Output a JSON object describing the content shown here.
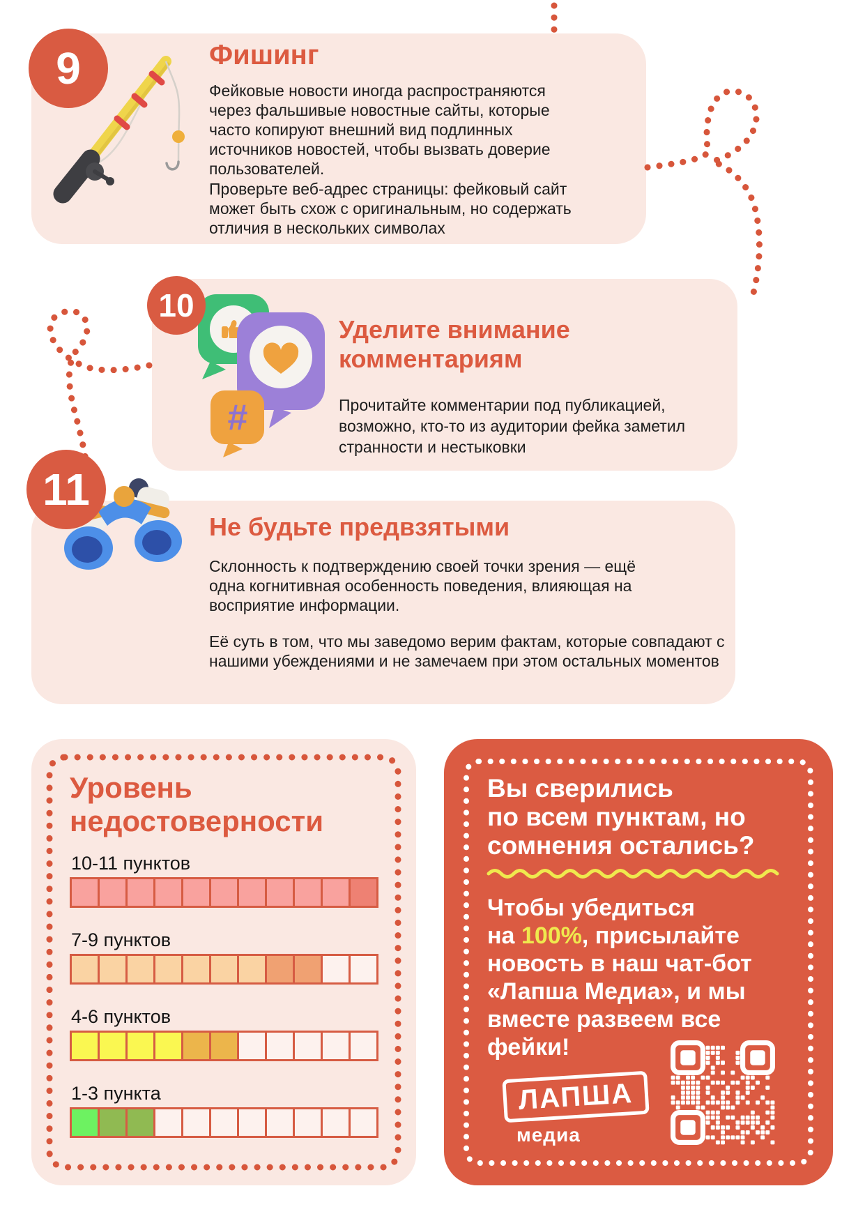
{
  "colors": {
    "accent": "#DC5A40",
    "badge": "#D95B42",
    "card_bg": "#FAE8E2",
    "cta_bg": "#DB5B42",
    "highlight_yellow": "#EFE94E",
    "text_dark": "#1D1D1D",
    "dotted_line": "#D7563B",
    "bar_border": "#D65C43",
    "bar_empty": "#FDF2EE"
  },
  "steps": {
    "phishing": {
      "number": "9",
      "title": "Фишинг",
      "icon": "fishing-rod",
      "p1": "Фейковые новости иногда распространяются через фальшивые новостные сайты, которые часто копируют внешний вид подлинных источников новостей, чтобы вызвать доверие пользователей.",
      "p2": "Проверьте веб-адрес страницы: фейковый сайт может быть схож с оригинальным, но содержать отличия в нескольких символах"
    },
    "comments": {
      "number": "10",
      "title": "Уделите внимание комментариям",
      "icon": "social-bubbles",
      "p1": "Прочитайте комментарии под публикацией, возможно, кто-то из аудитории фейка заметил странности и нестыковки"
    },
    "bias": {
      "number": "11",
      "title": "Не будьте предвзятыми",
      "icon": "binoculars",
      "p1": "Склонность к подтверждению своей точки зрения — ещё одна когнитивная особенность поведения, влияющая на восприятие информации.",
      "p2": "Её суть в том, что мы заведомо верим фактам, которые совпадают с нашими убеждениями и не замечаем при этом остальных моментов"
    }
  },
  "level_panel": {
    "title": "Уровень недостоверности",
    "total_cells": 11,
    "rows": [
      {
        "label": "10-11 пунктов",
        "filled": 11,
        "cell_colors": [
          "#F9A29E",
          "#F9A29E",
          "#F9A29E",
          "#F9A29E",
          "#F9A29E",
          "#F9A29E",
          "#F9A29E",
          "#F9A29E",
          "#F9A29E",
          "#F9A29E",
          "#EE8173"
        ]
      },
      {
        "label": "7-9 пунктов",
        "filled": 9,
        "cell_colors": [
          "#FAD3A3",
          "#FAD3A3",
          "#FAD3A3",
          "#FAD3A3",
          "#FAD3A3",
          "#FAD3A3",
          "#FAD3A3",
          "#F0A172",
          "#F0A172"
        ]
      },
      {
        "label": "4-6 пунктов",
        "filled": 6,
        "cell_colors": [
          "#FAF751",
          "#FAF751",
          "#FAF751",
          "#FAF751",
          "#ECB54B",
          "#ECB54B"
        ]
      },
      {
        "label": "1-3 пункта",
        "filled": 3,
        "cell_colors": [
          "#6DF261",
          "#90BA52",
          "#90BA52"
        ]
      }
    ]
  },
  "cta_panel": {
    "title_lines": [
      "Вы сверились",
      "по всем пунктам, но",
      "сомнения остались?"
    ],
    "body_line1": "Чтобы убедиться",
    "body_pre": "на ",
    "body_highlight": "100%",
    "body_rest": ", присылайте новость в наш чат-бот «Лапша Медиа», и мы вместе развеем все фейки!",
    "logo_main": "ЛАПША",
    "logo_sub": "медиа"
  }
}
